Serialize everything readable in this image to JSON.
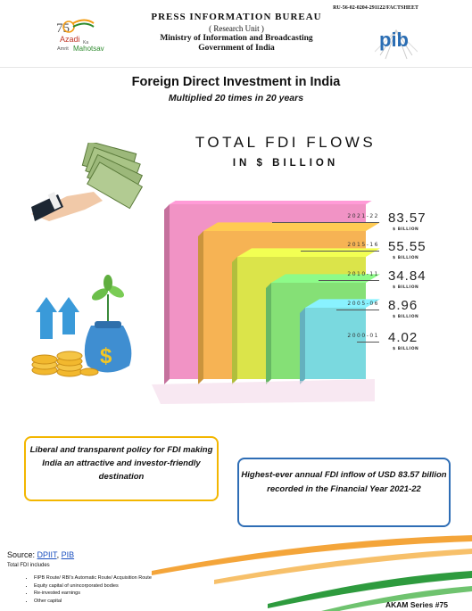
{
  "header": {
    "ref_code": "RU-56-02-0204-291122/FACTSHEET",
    "bureau": "PRESS INFORMATION BUREAU",
    "unit": "( Research Unit )",
    "ministry": "Ministry of Information and Broadcasting",
    "government": "Government of India",
    "akam_logo": {
      "line1": "Azadi",
      "line1b": "Ka",
      "line2": "Amrit",
      "line2b": "Mahotsav",
      "number": "75"
    },
    "pib_logo": "pib"
  },
  "title": "Foreign Direct Investment in India",
  "subtitle": "Multiplied 20 times in 20 years",
  "chart_data": {
    "type": "bar",
    "title": "TOTAL FDI FLOWS",
    "subtitle": "IN $ BILLION",
    "categories": [
      "2021-22",
      "2015-16",
      "2010-11",
      "2005-06",
      "2000-01"
    ],
    "values": [
      83.57,
      55.55,
      34.84,
      8.96,
      4.02
    ],
    "value_labels": [
      "83.57",
      "55.55",
      "34.84",
      "8.96",
      "4.02"
    ],
    "unit_label": "$ BILLION",
    "colors": [
      "#f08ac0",
      "#f6b54a",
      "#d8e84a",
      "#7ee07a",
      "#7ad8e8"
    ]
  },
  "callouts": {
    "policy": "Liberal and transparent policy for FDI making India an attractive and investor-friendly destination",
    "highest": "Highest-ever annual FDI inflow of USD 83.57 billion recorded in the Financial Year 2021-22"
  },
  "footer": {
    "source_label": "Source:",
    "source_link_1": "DPIIT",
    "source_sep": ",",
    "source_link_2": "PIB",
    "total_includes": "Total FDI includes",
    "items": [
      "FIPB Route/ RBI's Automatic Route/ Acquisition Route",
      "Equity capital of unincorporated bodies",
      "Re-invested earnings",
      "Other capital"
    ],
    "series": "AKAM Series #75"
  },
  "icons": [
    "money-hand-icon",
    "money-bag-plant-icon",
    "coins-icon",
    "up-arrow-icon",
    "tricolor-wave-icon"
  ]
}
